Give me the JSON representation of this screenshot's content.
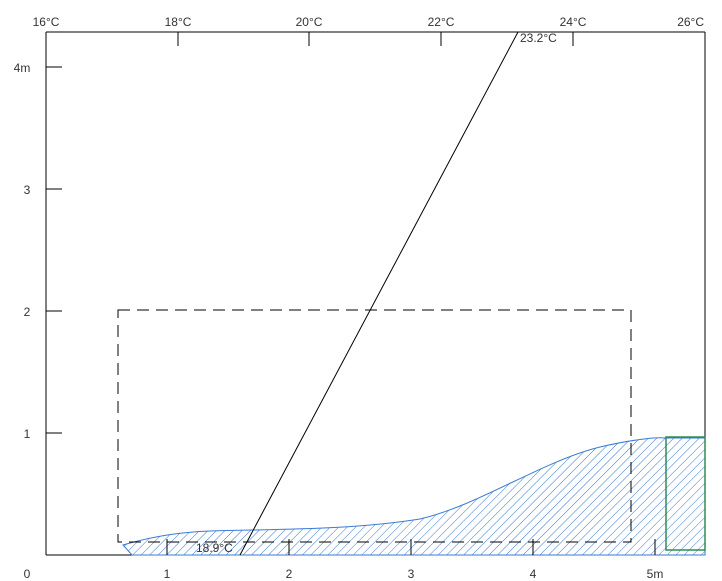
{
  "temperature_axis": {
    "labels": [
      "16°C",
      "18°C",
      "20°C",
      "22°C",
      "24°C",
      "26°C"
    ],
    "values": [
      16,
      18,
      20,
      22,
      24,
      26
    ]
  },
  "height_axis": {
    "labels": [
      "0",
      "1",
      "2",
      "3",
      "4m"
    ],
    "values": [
      0,
      1,
      2,
      3,
      4
    ]
  },
  "distance_axis": {
    "labels": [
      "1",
      "2",
      "3",
      "4",
      "5m"
    ],
    "values": [
      1,
      2,
      3,
      4,
      5
    ]
  },
  "temperature_gradient": {
    "bottom_label": "18.9°C",
    "top_label": "23.2°C",
    "bottom_temp": 18.9,
    "top_temp": 23.2
  },
  "colors": {
    "hatch": "#3a7bd5",
    "outline_green": "#2e8b57",
    "frame": "#000000"
  }
}
